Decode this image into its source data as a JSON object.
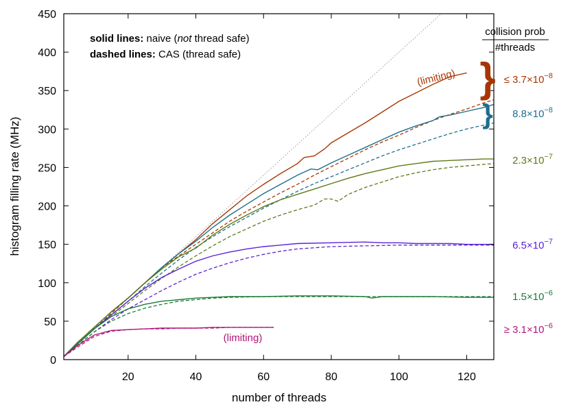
{
  "chart_data": {
    "type": "line",
    "title": "",
    "xlabel": "number of threads",
    "ylabel": "histogram filling rate (MHz)",
    "xlim": [
      1,
      128
    ],
    "ylim": [
      0,
      450
    ],
    "xticks": [
      20,
      40,
      60,
      80,
      100,
      120
    ],
    "yticks": [
      0,
      50,
      100,
      150,
      200,
      250,
      300,
      350,
      400,
      450
    ],
    "grid": false,
    "legend_text": {
      "line1_bold": "solid lines:",
      "line1_a": " naive (",
      "line1_italic": "not",
      "line1_b": " thread safe)",
      "line2_bold": "dashed lines:",
      "line2_rest": " CAS (thread safe)"
    },
    "header": {
      "top": "collision prob",
      "bottom": "#threads"
    },
    "reference_line": {
      "name": "ideal linear scaling",
      "x": [
        1,
        128
      ],
      "y": [
        4,
        512
      ],
      "color": "#999999"
    },
    "series": [
      {
        "name": "≤ 3.7×10⁻⁸",
        "color": "#a63603",
        "solid_x": [
          1,
          5,
          10,
          15,
          20,
          25,
          30,
          35,
          40,
          45,
          50,
          55,
          60,
          65,
          70,
          72,
          75,
          78,
          80,
          85,
          90,
          95,
          100,
          105,
          110,
          115,
          120
        ],
        "solid_y": [
          4,
          22,
          42,
          62,
          80,
          100,
          120,
          138,
          156,
          177,
          195,
          213,
          228,
          242,
          255,
          263,
          265,
          274,
          282,
          295,
          308,
          322,
          336,
          347,
          358,
          368,
          373
        ],
        "dashed_x": [
          1,
          5,
          10,
          15,
          20,
          25,
          30,
          35,
          40,
          45,
          50,
          55,
          60,
          65,
          70,
          75,
          80,
          85,
          90,
          95,
          100,
          105,
          110,
          115,
          120,
          125,
          128
        ],
        "dashed_y": [
          4,
          20,
          40,
          60,
          80,
          100,
          120,
          135,
          150,
          165,
          180,
          193,
          205,
          217,
          228,
          240,
          251,
          262,
          273,
          283,
          292,
          302,
          311,
          319,
          326,
          334,
          338
        ],
        "label": {
          "text": "≤ 3.7×10",
          "sup": "−8"
        },
        "annotation": "(limiting)"
      },
      {
        "name": "8.8×10⁻⁸",
        "color": "#1c6e8c",
        "solid_x": [
          1,
          5,
          10,
          15,
          20,
          25,
          30,
          35,
          40,
          45,
          50,
          55,
          60,
          65,
          70,
          74,
          76,
          80,
          85,
          90,
          95,
          100,
          105,
          110,
          112,
          115,
          120,
          125,
          128
        ],
        "solid_y": [
          4,
          22,
          42,
          62,
          80,
          100,
          120,
          138,
          154,
          172,
          188,
          202,
          216,
          228,
          240,
          248,
          247,
          256,
          266,
          276,
          286,
          296,
          304,
          311,
          316,
          318,
          323,
          328,
          332
        ],
        "dashed_x": [
          1,
          5,
          10,
          15,
          20,
          25,
          30,
          35,
          40,
          45,
          50,
          55,
          60,
          65,
          70,
          75,
          80,
          85,
          90,
          95,
          100,
          105,
          110,
          115,
          120,
          125,
          128
        ],
        "dashed_y": [
          4,
          20,
          40,
          58,
          76,
          95,
          113,
          130,
          146,
          160,
          173,
          185,
          197,
          208,
          219,
          229,
          238,
          247,
          256,
          265,
          273,
          280,
          287,
          294,
          300,
          305,
          308
        ],
        "label": {
          "text": "8.8×10",
          "sup": "−8"
        }
      },
      {
        "name": "2.3×10⁻⁷",
        "color": "#5b7a14",
        "solid_x": [
          1,
          5,
          10,
          15,
          20,
          25,
          30,
          35,
          40,
          45,
          50,
          55,
          60,
          65,
          70,
          75,
          80,
          85,
          90,
          95,
          100,
          105,
          110,
          115,
          120,
          125,
          128
        ],
        "solid_y": [
          4,
          22,
          42,
          62,
          80,
          100,
          118,
          134,
          145,
          162,
          176,
          188,
          199,
          208,
          215,
          222,
          229,
          236,
          242,
          247,
          252,
          255,
          258,
          259,
          260,
          261,
          261
        ],
        "dashed_x": [
          1,
          5,
          10,
          15,
          20,
          25,
          30,
          35,
          40,
          45,
          50,
          55,
          60,
          65,
          70,
          75,
          78,
          80,
          82,
          85,
          90,
          95,
          100,
          105,
          110,
          115,
          120,
          125,
          128
        ],
        "dashed_y": [
          4,
          20,
          40,
          56,
          73,
          90,
          106,
          121,
          135,
          148,
          160,
          170,
          180,
          188,
          195,
          201,
          209,
          209,
          206,
          215,
          224,
          231,
          238,
          243,
          247,
          250,
          252,
          254,
          255
        ],
        "label": {
          "text": "2.3×10",
          "sup": "−7"
        }
      },
      {
        "name": "6.5×10⁻⁷",
        "color": "#5b21d6",
        "solid_x": [
          1,
          5,
          10,
          15,
          20,
          25,
          30,
          35,
          40,
          45,
          50,
          55,
          60,
          65,
          70,
          80,
          90,
          95,
          100,
          105,
          110,
          115,
          120,
          125,
          128
        ],
        "solid_y": [
          4,
          20,
          40,
          58,
          76,
          93,
          107,
          118,
          128,
          135,
          140,
          144,
          147,
          149,
          151,
          152,
          153,
          152,
          152,
          151,
          151,
          151,
          150,
          150,
          150
        ],
        "dashed_x": [
          1,
          5,
          10,
          15,
          20,
          25,
          30,
          35,
          40,
          45,
          50,
          55,
          60,
          65,
          70,
          80,
          90,
          100,
          110,
          120,
          128
        ],
        "dashed_y": [
          4,
          18,
          36,
          52,
          66,
          78,
          90,
          101,
          111,
          119,
          126,
          132,
          137,
          141,
          144,
          147,
          148,
          149,
          149,
          149,
          149
        ],
        "label": {
          "text": "6.5×10",
          "sup": "−7"
        }
      },
      {
        "name": "1.5×10⁻⁶",
        "color": "#1a7a35",
        "solid_x": [
          1,
          5,
          10,
          15,
          20,
          25,
          30,
          35,
          40,
          45,
          50,
          60,
          70,
          80,
          90,
          92,
          95,
          100,
          110,
          120,
          128
        ],
        "solid_y": [
          4,
          20,
          40,
          56,
          66,
          72,
          76,
          78,
          80,
          81,
          82,
          82,
          83,
          83,
          82,
          80,
          82,
          82,
          82,
          81,
          81
        ],
        "dashed_x": [
          1,
          5,
          10,
          15,
          20,
          25,
          30,
          35,
          40,
          45,
          50,
          60,
          70,
          80,
          90,
          100,
          110,
          120,
          128
        ],
        "dashed_y": [
          4,
          18,
          36,
          50,
          60,
          67,
          72,
          76,
          78,
          80,
          81,
          82,
          82,
          82,
          82,
          82,
          82,
          82,
          82
        ],
        "label": {
          "text": "1.5×10",
          "sup": "−6"
        }
      },
      {
        "name": "≥ 3.1×10⁻⁶",
        "color": "#b0157a",
        "solid_x": [
          1,
          5,
          10,
          15,
          20,
          25,
          30,
          35,
          40,
          45,
          50,
          55,
          60,
          63
        ],
        "solid_y": [
          4,
          18,
          32,
          38,
          39,
          40,
          41,
          41,
          41,
          42,
          42,
          42,
          42,
          42
        ],
        "dashed_x": [
          1,
          5,
          10,
          15,
          20,
          25,
          30,
          35,
          40,
          45,
          50,
          55,
          60,
          63
        ],
        "dashed_y": [
          4,
          16,
          30,
          37,
          39,
          40,
          40,
          41,
          41,
          41,
          42,
          42,
          42,
          42
        ],
        "label": {
          "text": "≥ 3.1×10",
          "sup": "−6"
        },
        "annotation": "(limiting)"
      }
    ]
  }
}
